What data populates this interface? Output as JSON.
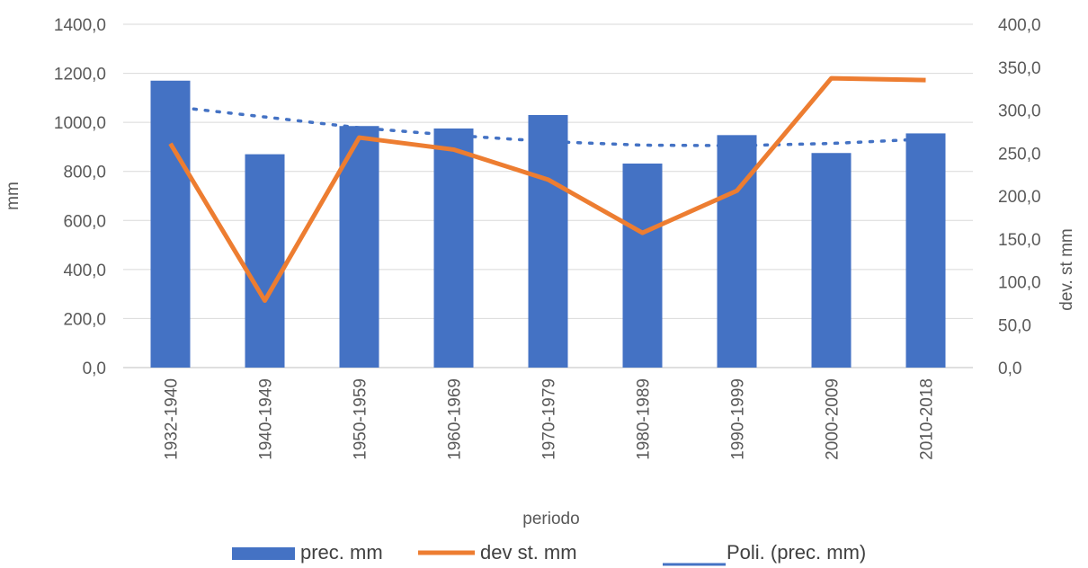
{
  "chart_data": {
    "type": "bar",
    "categories": [
      "1932-1940",
      "1940-1949",
      "1950-1959",
      "1960-1969",
      "1970-1979",
      "1980-1989",
      "1990-1999",
      "2000-2009",
      "2010-2018"
    ],
    "series": [
      {
        "name": "prec. mm",
        "type": "bar",
        "axis": "left",
        "color": "#4472C4",
        "values": [
          1170,
          870,
          985,
          975,
          1030,
          832,
          948,
          875,
          955
        ]
      },
      {
        "name": "dev st. mm",
        "type": "line",
        "axis": "right",
        "color": "#ED7D31",
        "values": [
          261,
          78,
          268,
          254,
          219,
          157,
          206,
          337,
          335
        ]
      },
      {
        "name": "Poli. (prec. mm)",
        "type": "trendline",
        "axis": "left",
        "color": "#4472C4",
        "style": "dotted",
        "values": [
          1065,
          1022,
          978,
          947,
          922,
          907,
          905,
          914,
          932
        ]
      }
    ],
    "xlabel": "periodo",
    "ylabel": "mm",
    "y2label": "dev. st  mm",
    "ylim": [
      0,
      1400
    ],
    "y2lim": [
      0,
      400
    ],
    "yticks": [
      "0,0",
      "200,0",
      "400,0",
      "600,0",
      "800,0",
      "1000,0",
      "1200,0",
      "1400,0"
    ],
    "y2ticks": [
      "0,0",
      "50,0",
      "100,0",
      "150,0",
      "200,0",
      "250,0",
      "300,0",
      "350,0",
      "400,0"
    ],
    "grid": true,
    "legend_position": "bottom"
  }
}
